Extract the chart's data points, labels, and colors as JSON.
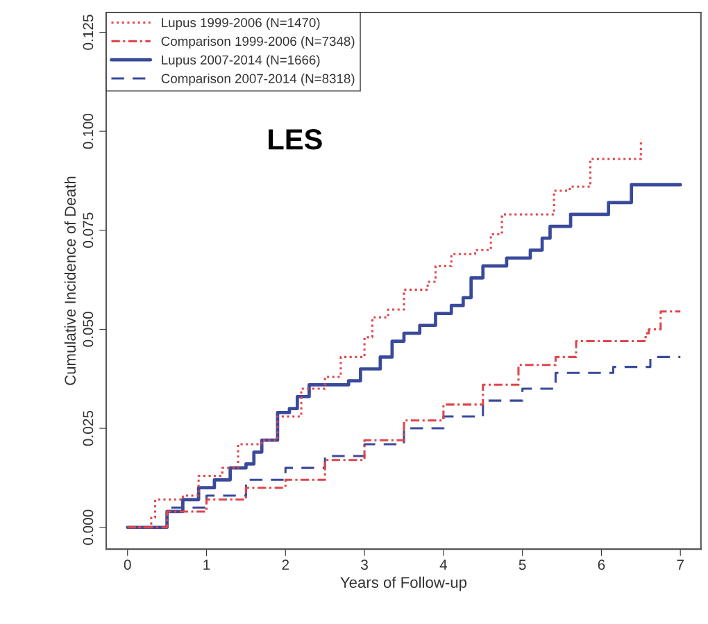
{
  "chart_data": {
    "type": "step",
    "xlabel": "Years of Follow-up",
    "ylabel": "Cumulative Incidence of Death",
    "annotations": [
      "LES"
    ],
    "xlim": [
      -0.27,
      7.26
    ],
    "ylim": [
      -0.0055,
      0.13
    ],
    "xticks": [
      0,
      1,
      2,
      3,
      4,
      5,
      6,
      7
    ],
    "yticks": [
      {
        "value": 0,
        "label": "0.000"
      },
      {
        "value": 0.025,
        "label": "0.025"
      },
      {
        "value": 0.05,
        "label": "0.050"
      },
      {
        "value": 0.075,
        "label": "0.075"
      },
      {
        "value": 0.1,
        "label": "0.100"
      },
      {
        "value": 0.125,
        "label": "0.125"
      }
    ],
    "grid": false,
    "legend": "top left",
    "series": [
      {
        "name": "Lupus 1999-2006 (N=1470)",
        "color": "#e0454a",
        "line_style": "dotted",
        "x": [
          0,
          0.3,
          0.35,
          0.7,
          0.9,
          1.2,
          1.4,
          1.7,
          1.9,
          2.2,
          2.5,
          2.7,
          3.0,
          3.1,
          3.3,
          3.5,
          3.8,
          3.9,
          4.1,
          4.4,
          4.6,
          4.74,
          5.3,
          5.4,
          5.6,
          5.86,
          6.44,
          6.5
        ],
        "values": [
          0,
          0.0025,
          0.007,
          0.008,
          0.013,
          0.015,
          0.021,
          0.022,
          0.028,
          0.035,
          0.038,
          0.043,
          0.048,
          0.053,
          0.055,
          0.06,
          0.062,
          0.066,
          0.069,
          0.07,
          0.074,
          0.079,
          0.079,
          0.085,
          0.086,
          0.093,
          0.093,
          0.098
        ]
      },
      {
        "name": "Comparison 1999-2006 (N=7348)",
        "color": "#e0454a",
        "line_style": "dashdot",
        "x": [
          0,
          0.5,
          1.0,
          1.5,
          2.0,
          2.5,
          3.0,
          3.5,
          4.0,
          4.5,
          4.95,
          5.42,
          5.68,
          6.56,
          6.6,
          6.75,
          7.0
        ],
        "values": [
          0,
          0.004,
          0.007,
          0.01,
          0.012,
          0.017,
          0.022,
          0.027,
          0.031,
          0.036,
          0.041,
          0.043,
          0.047,
          0.049,
          0.05,
          0.0545,
          0.0545
        ]
      },
      {
        "name": "Lupus 2007-2014 (N=1666)",
        "color": "#3a4a9a",
        "line_style": "solid",
        "x": [
          0,
          0.5,
          0.7,
          0.9,
          1.1,
          1.3,
          1.5,
          1.6,
          1.7,
          1.9,
          2.05,
          2.15,
          2.3,
          2.6,
          2.8,
          2.95,
          3.2,
          3.35,
          3.5,
          3.7,
          3.9,
          4.1,
          4.25,
          4.35,
          4.5,
          4.8,
          5.1,
          5.25,
          5.35,
          5.61,
          6.09,
          6.38,
          7.0
        ],
        "values": [
          0,
          0.004,
          0.007,
          0.01,
          0.012,
          0.015,
          0.016,
          0.019,
          0.022,
          0.029,
          0.03,
          0.033,
          0.036,
          0.036,
          0.037,
          0.04,
          0.043,
          0.047,
          0.049,
          0.051,
          0.054,
          0.056,
          0.058,
          0.063,
          0.066,
          0.068,
          0.07,
          0.073,
          0.076,
          0.079,
          0.082,
          0.0865,
          0.0865
        ]
      },
      {
        "name": "Comparison 2007-2014 (N=8318)",
        "color": "#3a4a9a",
        "line_style": "dashed",
        "x": [
          0,
          0.5,
          1.0,
          1.5,
          2.0,
          2.5,
          3.0,
          3.5,
          4.0,
          4.5,
          5.0,
          5.42,
          6.15,
          6.62,
          7.0
        ],
        "values": [
          0,
          0.005,
          0.008,
          0.012,
          0.015,
          0.018,
          0.021,
          0.025,
          0.028,
          0.032,
          0.035,
          0.039,
          0.0405,
          0.043,
          0.043
        ]
      }
    ]
  }
}
